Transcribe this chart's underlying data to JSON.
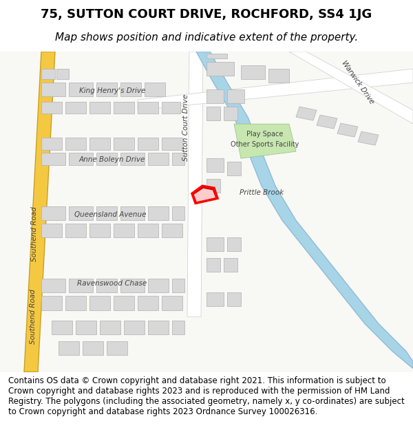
{
  "title_line1": "75, SUTTON COURT DRIVE, ROCHFORD, SS4 1JG",
  "title_line2": "Map shows position and indicative extent of the property.",
  "footer_text": "Contains OS data © Crown copyright and database right 2021. This information is subject to Crown copyright and database rights 2023 and is reproduced with the permission of HM Land Registry. The polygons (including the associated geometry, namely x, y co-ordinates) are subject to Crown copyright and database rights 2023 Ordnance Survey 100026316.",
  "bg_color": "#f5f4f0",
  "map_bg": "#ffffff",
  "road_color": "#ffffff",
  "road_outline": "#cccccc",
  "building_fill": "#d8d8d8",
  "building_outline": "#b0b0b0",
  "highlight_fill": "#ff0000",
  "highlight_outline": "#cc0000",
  "road_yellow": "#f5c842",
  "stream_color": "#a8d4e8",
  "green_area": "#c8e6b0",
  "title_fontsize": 13,
  "subtitle_fontsize": 11,
  "footer_fontsize": 8.5,
  "map_label_fontsize": 7.5
}
